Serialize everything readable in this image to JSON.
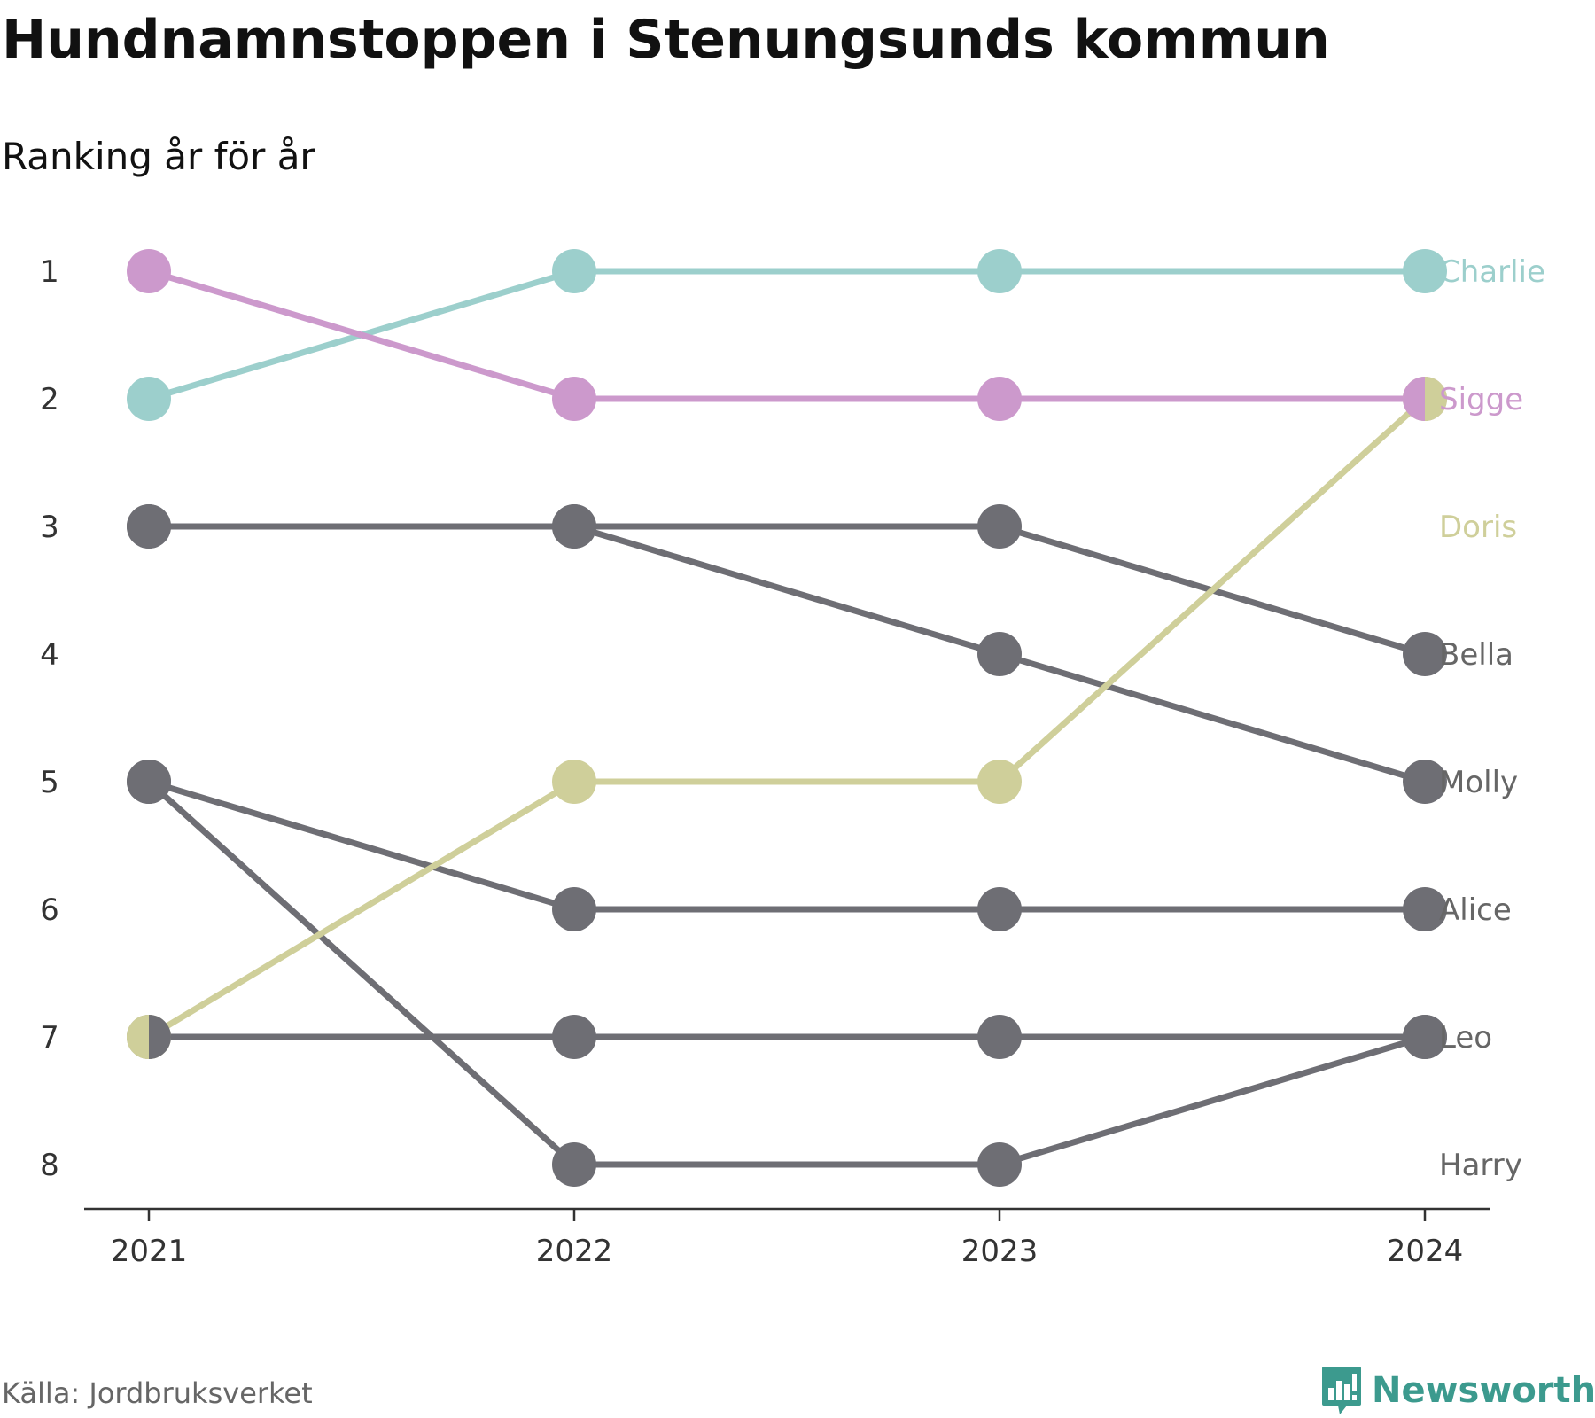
{
  "header": {
    "title": "Hundnamnstoppen i Stenungsunds kommun",
    "subtitle": "Ranking år för år"
  },
  "footer": {
    "source": "Källa: Jordbruksverket",
    "brand": "Newsworthy",
    "brand_color": "#3c9a8e",
    "brand_icon": "bar-chart-speech-bubble-icon"
  },
  "chart_data": {
    "type": "line",
    "subtype": "bump",
    "x": [
      "2021",
      "2022",
      "2023",
      "2024"
    ],
    "y_ticks": [
      1,
      2,
      3,
      4,
      5,
      6,
      7,
      8
    ],
    "y_reversed": true,
    "ylim": [
      1,
      8
    ],
    "grid": false,
    "legend": "labels at line ends (right)",
    "series": [
      {
        "name": "Charlie",
        "values": [
          2,
          1,
          1,
          1
        ],
        "color": "#9ccfcc",
        "label_color": "#9ccfcc"
      },
      {
        "name": "Sigge",
        "values": [
          1,
          2,
          2,
          2
        ],
        "color": "#cc99cc",
        "label_color": "#cc99cc"
      },
      {
        "name": "Doris",
        "values": [
          7,
          5,
          5,
          2
        ],
        "color": "#cfcf9a",
        "label_color": "#cfcf9a"
      },
      {
        "name": "Bella",
        "values": [
          3,
          3,
          3,
          4
        ],
        "color": "#6e6e74",
        "label_color": "#666666"
      },
      {
        "name": "Molly",
        "values": [
          3,
          3,
          4,
          5
        ],
        "color": "#6e6e74",
        "label_color": "#666666"
      },
      {
        "name": "Alice",
        "values": [
          5,
          6,
          6,
          6
        ],
        "color": "#6e6e74",
        "label_color": "#666666"
      },
      {
        "name": "Leo",
        "values": [
          7,
          7,
          7,
          7
        ],
        "color": "#6e6e74",
        "label_color": "#666666"
      },
      {
        "name": "Harry",
        "values": [
          5,
          8,
          8,
          7
        ],
        "color": "#6e6e74",
        "label_color": "#666666"
      }
    ],
    "end_labels": [
      {
        "name": "Charlie",
        "rank": 1,
        "color": "#9ccfcc"
      },
      {
        "name": "Sigge",
        "rank": 2,
        "color": "#cc99cc"
      },
      {
        "name": "Doris",
        "rank": 3,
        "color": "#cfcf9a"
      },
      {
        "name": "Bella",
        "rank": 4,
        "color": "#666666"
      },
      {
        "name": "Molly",
        "rank": 5,
        "color": "#666666"
      },
      {
        "name": "Alice",
        "rank": 6,
        "color": "#666666"
      },
      {
        "name": "Leo",
        "rank": 7,
        "color": "#666666"
      },
      {
        "name": "Harry",
        "rank": 8,
        "color": "#666666"
      }
    ]
  }
}
